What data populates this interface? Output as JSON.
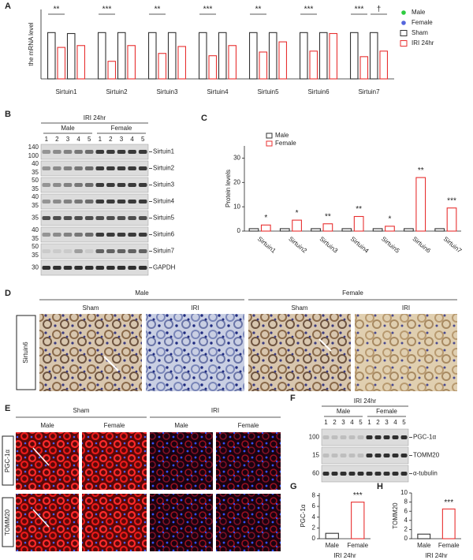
{
  "panel_letters": [
    "A",
    "B",
    "C",
    "D",
    "E",
    "F",
    "G",
    "H"
  ],
  "chart_data": [
    {
      "type": "bar",
      "y_label": "the mRNA level",
      "categories": [
        "Sirtuin1",
        "Sirtuin2",
        "Sirtuin3",
        "Sirtuin4",
        "Sirtuin5",
        "Sirtuin6",
        "Sirtuin7"
      ],
      "series": [
        {
          "color": "#333333",
          "values": [
            1.0,
            1.0,
            1.0,
            1.0,
            1.0,
            1.0,
            1.0
          ]
        },
        {
          "color": "#e83030",
          "values": [
            0.68,
            0.38,
            0.55,
            0.5,
            0.58,
            0.6,
            0.48
          ]
        },
        {
          "color": "#333333",
          "values": [
            0.98,
            1.0,
            1.0,
            1.0,
            1.0,
            1.0,
            1.0
          ]
        },
        {
          "color": "#e83030",
          "values": [
            0.72,
            0.72,
            0.7,
            0.72,
            0.8,
            0.98,
            0.6
          ]
        }
      ],
      "significance": [
        [
          "**",
          null
        ],
        [
          "***",
          null
        ],
        [
          "**",
          null
        ],
        [
          "***",
          null
        ],
        [
          "**",
          null
        ],
        [
          "***",
          null
        ],
        [
          "***",
          "†"
        ]
      ],
      "ylim": [
        0,
        1.5
      ],
      "legend": [
        {
          "label": "Male",
          "color": "#2ecc40",
          "kind": "dot"
        },
        {
          "label": "Female",
          "color": "#5566dd",
          "kind": "dot"
        },
        {
          "label": "Sham",
          "color": "#333333",
          "kind": "box"
        },
        {
          "label": "IRI 24hr",
          "color": "#e83030",
          "kind": "box"
        }
      ]
    },
    {
      "type": "bar",
      "y_label": "Protein levels",
      "categories": [
        "Sirtuin1",
        "Sirtuin2",
        "Sirtuin3",
        "Sirtuin4",
        "Sirtuin5",
        "Sirtuin6",
        "Sirtuin7"
      ],
      "series": [
        {
          "name": "Male",
          "color": "#333333",
          "values": [
            1,
            1,
            1,
            1,
            1,
            1,
            1
          ]
        },
        {
          "name": "Female",
          "color": "#e83030",
          "values": [
            2.5,
            4.5,
            3,
            6,
            2,
            22,
            9.5
          ]
        }
      ],
      "significance": [
        "*",
        "*",
        "**",
        "**",
        "*",
        "**",
        "***"
      ],
      "ylim": [
        0,
        35
      ],
      "yticks": [
        0,
        10,
        20,
        30
      ]
    },
    {
      "type": "bar",
      "y_label": "PGC-1α",
      "x_label": "IRI 24hr",
      "categories": [
        "Male",
        "Female"
      ],
      "values": [
        1,
        6.8
      ],
      "colors": [
        "#333333",
        "#e83030"
      ],
      "significance": [
        null,
        "***"
      ],
      "ylim": [
        0,
        8.5
      ],
      "yticks": [
        0,
        2,
        4,
        6,
        8
      ]
    },
    {
      "type": "bar",
      "y_label": "TOMM20",
      "x_label": "IRI 24hr",
      "categories": [
        "Male",
        "Female"
      ],
      "values": [
        1,
        6.5
      ],
      "colors": [
        "#333333",
        "#e83030"
      ],
      "significance": [
        null,
        "***"
      ],
      "ylim": [
        0,
        10
      ],
      "yticks": [
        0,
        2,
        4,
        6,
        8,
        10
      ]
    }
  ],
  "blot_b": {
    "header": "IRI 24hr",
    "groups": [
      "Male",
      "Female"
    ],
    "lanes": [
      1,
      2,
      3,
      4,
      5,
      1,
      2,
      3,
      4,
      5
    ],
    "rows": [
      {
        "label": "Sirtuin1",
        "markers": [
          140,
          100
        ]
      },
      {
        "label": "Sirtuin2",
        "markers": [
          40,
          35
        ]
      },
      {
        "label": "Sirtuin3",
        "markers": [
          50,
          35
        ]
      },
      {
        "label": "Sirtuin4",
        "markers": [
          40,
          35
        ]
      },
      {
        "label": "Sirtuin5",
        "markers": [
          35
        ]
      },
      {
        "label": "Sirtuin6",
        "markers": [
          40,
          35
        ]
      },
      {
        "label": "Sirtuin7",
        "markers": [
          50,
          35
        ]
      },
      {
        "label": "GAPDH",
        "markers": [
          30
        ]
      }
    ]
  },
  "histology_d": {
    "groups": [
      "Male",
      "Female"
    ],
    "conditions": [
      "Sham",
      "IRI",
      "Sham",
      "IRI"
    ],
    "row_label": "Sirtuin6"
  },
  "fluorescence_e": {
    "conditions": [
      "Sham",
      "IRI"
    ],
    "columns": [
      "Male",
      "Female",
      "Male",
      "Female"
    ],
    "rows": [
      "PGC-1α",
      "TOMM20"
    ]
  },
  "blot_f": {
    "header": "IRI 24hr",
    "groups": [
      "Male",
      "Female"
    ],
    "lanes": [
      1,
      2,
      3,
      4,
      5,
      1,
      2,
      3,
      4,
      5
    ],
    "rows": [
      {
        "label": "PGC-1α",
        "markers": [
          100
        ]
      },
      {
        "label": "TOMM20",
        "markers": [
          15
        ]
      },
      {
        "label": "α-tubulin",
        "markers": [
          60
        ]
      }
    ]
  }
}
